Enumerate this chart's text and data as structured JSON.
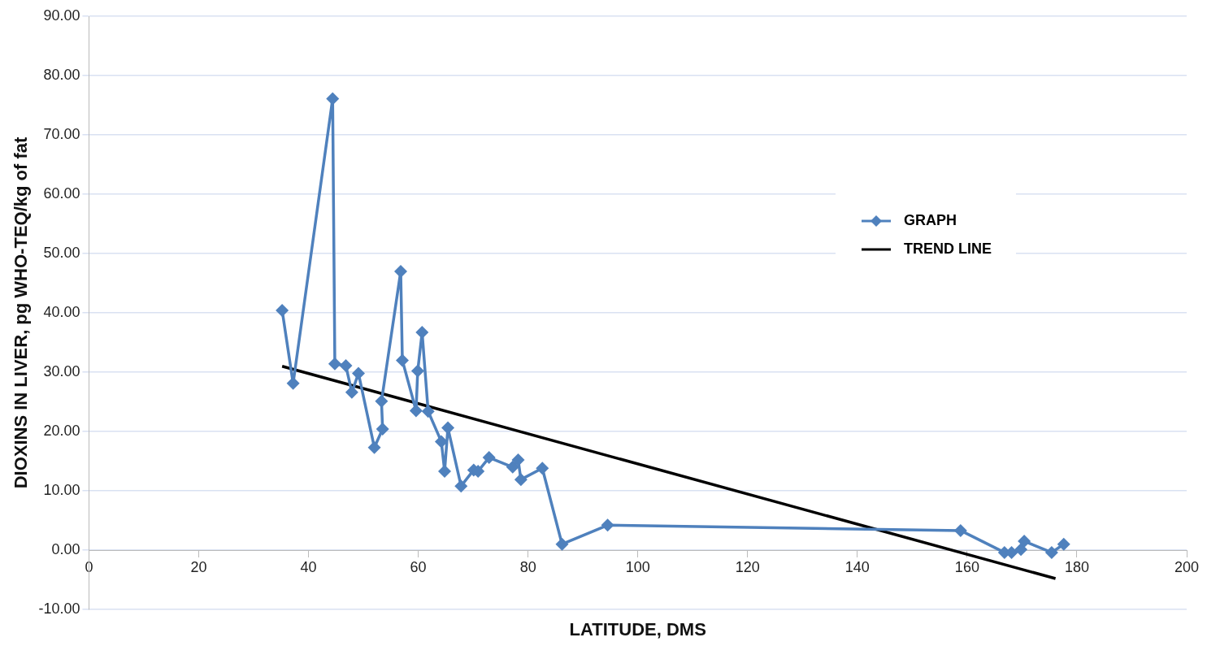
{
  "chart_data": {
    "type": "line",
    "xlabel": "LATITUDE, DMS",
    "ylabel": "DIOXINS IN LIVER, pg WHO-TEQ/kg of fat",
    "xlim": [
      0,
      200
    ],
    "xticks": [
      0,
      20,
      40,
      60,
      80,
      100,
      120,
      140,
      160,
      180,
      200
    ],
    "ylim": [
      -10,
      90
    ],
    "yticks": [
      {
        "value": -10,
        "label": "-10.00"
      },
      {
        "value": 0,
        "label": "0.00"
      },
      {
        "value": 10,
        "label": "10.00"
      },
      {
        "value": 20,
        "label": "20.00"
      },
      {
        "value": 30,
        "label": "30.00"
      },
      {
        "value": 40,
        "label": "40.00"
      },
      {
        "value": 50,
        "label": "50.00"
      },
      {
        "value": 60,
        "label": "60.00"
      },
      {
        "value": 70,
        "label": "70.00"
      },
      {
        "value": 80,
        "label": "80.00"
      },
      {
        "value": 90,
        "label": "90.00"
      }
    ],
    "grid": "y",
    "legend": "right",
    "marker": "diamond",
    "series": [
      {
        "name": "GRAPH",
        "color": "#4f81bd",
        "x": [
          35.2,
          37.2,
          44.4,
          44.8,
          46.8,
          47.9,
          49.1,
          52.0,
          53.5,
          53.3,
          56.8,
          57.1,
          59.6,
          59.9,
          60.7,
          61.8,
          64.2,
          64.8,
          65.4,
          67.8,
          70.1,
          70.9,
          72.9,
          77.2,
          78.2,
          78.7,
          82.6,
          86.2,
          94.5,
          158.8,
          166.8,
          168.1,
          169.8,
          170.4,
          175.4,
          177.6
        ],
        "values": [
          40.4,
          28.1,
          76.1,
          31.4,
          31.1,
          26.6,
          29.8,
          17.3,
          20.4,
          25.1,
          47.0,
          32.0,
          23.5,
          30.2,
          36.7,
          23.4,
          18.3,
          13.3,
          20.6,
          10.8,
          13.5,
          13.3,
          15.6,
          14.0,
          15.2,
          11.9,
          13.8,
          1.0,
          4.2,
          3.3,
          -0.4,
          -0.4,
          0.1,
          1.5,
          -0.4,
          1.0
        ]
      },
      {
        "name": "TREND LINE",
        "type": "line",
        "color": "#000000",
        "marker": "none",
        "x": [
          35.2,
          176.1
        ],
        "values": [
          31.0,
          -4.8
        ]
      }
    ]
  }
}
